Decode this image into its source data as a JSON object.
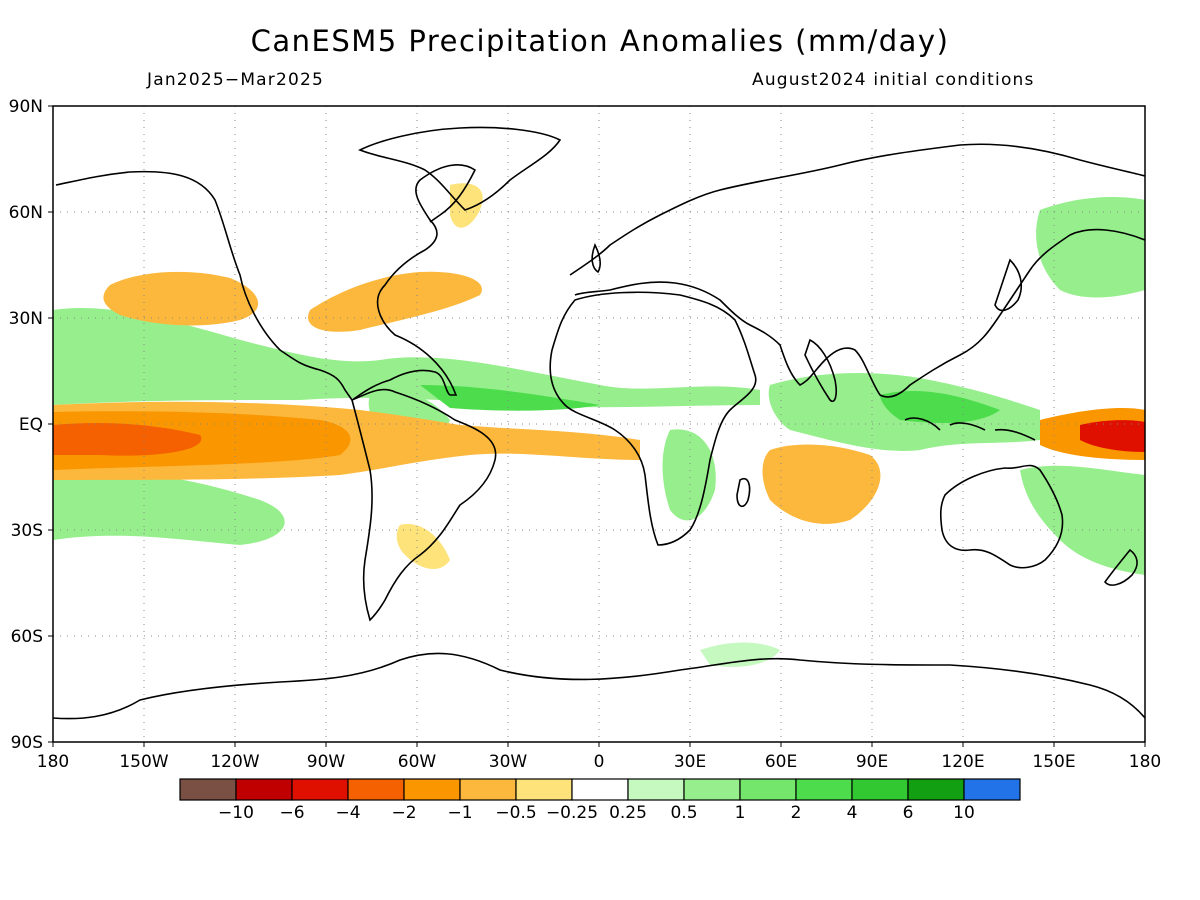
{
  "title": "CanESM5 Precipitation Anomalies (mm/day)",
  "subtitle_left": "Jan2025−Mar2025",
  "subtitle_right": "August2024 initial conditions",
  "map": {
    "projection": "equirectangular",
    "lon_range": [
      -180,
      180
    ],
    "lat_range": [
      -90,
      90
    ],
    "grid": "dotted",
    "lat_ticks": [
      {
        "value": 90,
        "label": "90N"
      },
      {
        "value": 60,
        "label": "60N"
      },
      {
        "value": 30,
        "label": "30N"
      },
      {
        "value": 0,
        "label": "EQ"
      },
      {
        "value": -30,
        "label": "30S"
      },
      {
        "value": -60,
        "label": "60S"
      },
      {
        "value": -90,
        "label": "90S"
      }
    ],
    "lon_ticks": [
      {
        "value": -180,
        "label": "180"
      },
      {
        "value": -150,
        "label": "150W"
      },
      {
        "value": -120,
        "label": "120W"
      },
      {
        "value": -90,
        "label": "90W"
      },
      {
        "value": -60,
        "label": "60W"
      },
      {
        "value": -30,
        "label": "30W"
      },
      {
        "value": 0,
        "label": "0"
      },
      {
        "value": 30,
        "label": "30E"
      },
      {
        "value": 60,
        "label": "60E"
      },
      {
        "value": 90,
        "label": "90E"
      },
      {
        "value": 120,
        "label": "120E"
      },
      {
        "value": 150,
        "label": "150E"
      },
      {
        "value": 180,
        "label": "180"
      }
    ]
  },
  "colorbar": {
    "colors": [
      "#7a5045",
      "#c00000",
      "#e01000",
      "#f56000",
      "#fa9600",
      "#fcb83c",
      "#fde37a",
      "#ffffff",
      "#c6f9c0",
      "#96ef8c",
      "#73e66b",
      "#4cdc4c",
      "#32c832",
      "#12a012",
      "#2272e8"
    ],
    "labels": [
      "−10",
      "−6",
      "−4",
      "−2",
      "−1",
      "−0.5",
      "−0.25",
      "0.25",
      "0.5",
      "1",
      "2",
      "4",
      "6",
      "10"
    ]
  },
  "legend_colors": {
    "dry_strong": "#e01000",
    "dry_moderate": "#fa9600",
    "dry_weak": "#fde37a",
    "wet_weak": "#96ef8c",
    "wet_moderate": "#4cdc4c",
    "wet_strong": "#12a012"
  }
}
